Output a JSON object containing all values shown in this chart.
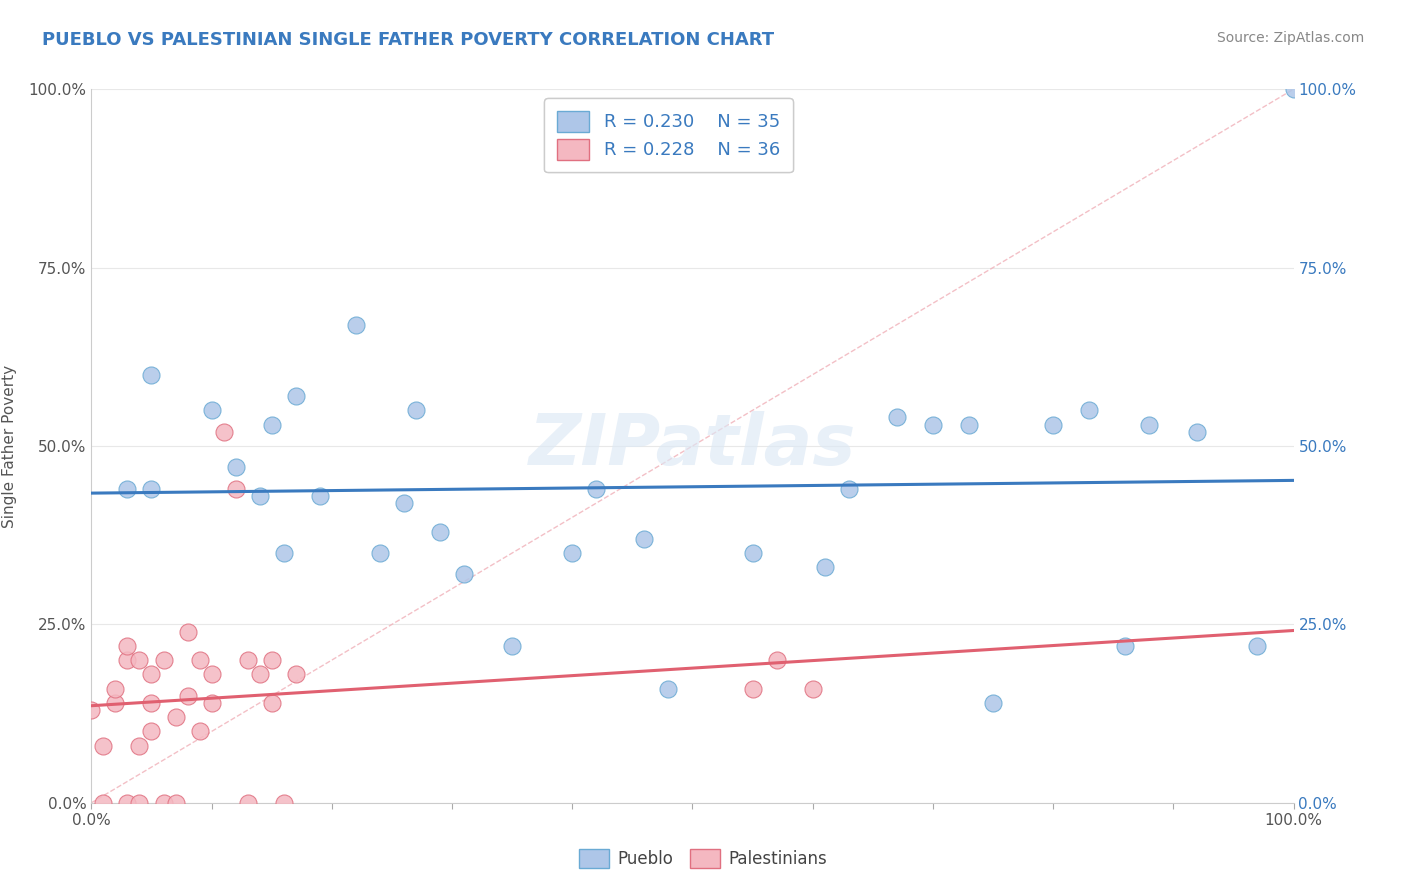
{
  "title": "PUEBLO VS PALESTINIAN SINGLE FATHER POVERTY CORRELATION CHART",
  "source": "Source: ZipAtlas.com",
  "ylabel": "Single Father Poverty",
  "pueblo_R": "0.230",
  "pueblo_N": "35",
  "palestinian_R": "0.228",
  "palestinian_N": "36",
  "pueblo_color": "#aec6e8",
  "pueblo_edge": "#6aaad4",
  "palestinian_color": "#f4b8c1",
  "palestinian_edge": "#e07080",
  "pueblo_line_color": "#3a7abf",
  "palestinian_line_color": "#e06070",
  "diagonal_color": "#f0b0b8",
  "background_color": "#ffffff",
  "grid_color": "#e8e8e8",
  "text_color": "#3a7abf",
  "title_color": "#3a7abf",
  "source_color": "#888888",
  "pueblo_x": [
    3,
    5,
    5,
    10,
    12,
    14,
    15,
    16,
    17,
    19,
    22,
    24,
    26,
    27,
    29,
    31,
    35,
    40,
    42,
    46,
    48,
    55,
    61,
    63,
    67,
    70,
    73,
    75,
    80,
    83,
    86,
    88,
    92,
    97,
    100
  ],
  "pueblo_y": [
    44,
    44,
    60,
    55,
    47,
    43,
    53,
    35,
    57,
    43,
    67,
    35,
    42,
    55,
    38,
    32,
    22,
    35,
    44,
    37,
    16,
    35,
    33,
    44,
    54,
    53,
    53,
    14,
    53,
    55,
    22,
    53,
    52,
    22,
    100
  ],
  "palestinian_x": [
    0,
    1,
    1,
    2,
    2,
    3,
    3,
    3,
    4,
    4,
    4,
    5,
    5,
    5,
    6,
    6,
    7,
    7,
    8,
    8,
    9,
    9,
    10,
    10,
    11,
    12,
    13,
    13,
    14,
    15,
    15,
    16,
    17,
    55,
    57,
    60
  ],
  "palestinian_y": [
    13,
    0,
    8,
    14,
    16,
    20,
    22,
    0,
    8,
    20,
    0,
    10,
    18,
    14,
    20,
    0,
    12,
    0,
    15,
    24,
    10,
    20,
    14,
    18,
    52,
    44,
    0,
    20,
    18,
    14,
    20,
    0,
    18,
    16,
    20,
    16
  ]
}
